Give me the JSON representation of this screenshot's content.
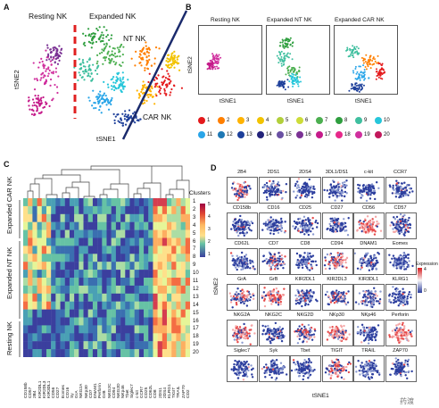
{
  "panels": {
    "a": "A",
    "b": "B",
    "c": "C",
    "d": "D"
  },
  "panelA": {
    "resting_label": "Resting NK",
    "expanded_label": "Expanded NK",
    "ntnk_label": "NT NK",
    "carnk_label": "CAR NK",
    "xlabel": "tSNE1",
    "ylabel": "tSNE2"
  },
  "panelB": {
    "titles": [
      "Resting NK",
      "Expanded NT NK",
      "Expanded CAR NK"
    ],
    "xlabel": "tSNE1",
    "ylabel": "tSNE2",
    "clusters": [
      {
        "n": "1",
        "c": "#e41a1c"
      },
      {
        "n": "2",
        "c": "#ff7f00"
      },
      {
        "n": "3",
        "c": "#ffb300"
      },
      {
        "n": "4",
        "c": "#f2c300"
      },
      {
        "n": "5",
        "c": "#b2cf3b"
      },
      {
        "n": "6",
        "c": "#cddc39"
      },
      {
        "n": "7",
        "c": "#4caf50"
      },
      {
        "n": "8",
        "c": "#2e9e3e"
      },
      {
        "n": "9",
        "c": "#3fbf9f"
      },
      {
        "n": "10",
        "c": "#26c6da"
      },
      {
        "n": "11",
        "c": "#29a5e8"
      },
      {
        "n": "12",
        "c": "#1f78b4"
      },
      {
        "n": "13",
        "c": "#1d3f9a"
      },
      {
        "n": "14",
        "c": "#23237a"
      },
      {
        "n": "15",
        "c": "#6a51a3"
      },
      {
        "n": "16",
        "c": "#7b3294"
      },
      {
        "n": "17",
        "c": "#c51b8a"
      },
      {
        "n": "18",
        "c": "#e7298a"
      },
      {
        "n": "19",
        "c": "#d0309e"
      },
      {
        "n": "20",
        "c": "#c2185b"
      }
    ]
  },
  "panelC": {
    "clusters_title": "Clusters",
    "cluster_numbers": [
      "1",
      "2",
      "3",
      "4",
      "5",
      "6",
      "7",
      "8",
      "9",
      "10",
      "11",
      "12",
      "13",
      "14",
      "15",
      "16",
      "17",
      "18",
      "19",
      "20"
    ],
    "groups": [
      "Expanded CAR NK",
      "Expanded NT NK",
      "Resting NK"
    ],
    "markers": [
      "CD158b",
      "CD57",
      "2B4",
      "KIR2DL1",
      "KIR2DL3",
      "KIR3DL1",
      "CD56",
      "CD27",
      "Eomes",
      "CD16",
      "Sy",
      "GrA",
      "NKG2A",
      "NKp30",
      "CD7",
      "DNAM1",
      "Perforin",
      "GrB",
      "NKG2C",
      "CD94",
      "NKG2D",
      "NKp46",
      "Tbet",
      "Siglec7",
      "c-kit",
      "CCR7",
      "CD25",
      "CD62L",
      "CD8",
      "2DS1",
      "2DS4",
      "KLRG1",
      "TIGIT",
      "TRAIL",
      "ZAP70",
      "CD2"
    ],
    "scale_ticks": [
      "5",
      "4",
      "3",
      "2",
      "1"
    ]
  },
  "panelD": {
    "markers": [
      "2B4",
      "2DS1",
      "2DS4",
      "3DL1/DS1",
      "c-kit",
      "CCR7",
      "CD158b",
      "CD16",
      "CD25",
      "CD27",
      "CD56",
      "CD57",
      "CD62L",
      "CD7",
      "CD8",
      "CD94",
      "DNAM1",
      "Eomes",
      "GrA",
      "GrB",
      "KIR2DL1",
      "KIR2DL3",
      "KIR3DL1",
      "KLRG1",
      "NKG2A",
      "NKG2C",
      "NKG2D",
      "NKp30",
      "NKp46",
      "Perforin",
      "Siglec7",
      "Syk",
      "Tbet",
      "TIGIT",
      "TRAIL",
      "ZAP70"
    ],
    "xlabel": "tSNE1",
    "ylabel": "tSNE2",
    "legend_title": "Expression",
    "legend_hi": "4",
    "legend_lo": "0"
  },
  "watermark": "药渡"
}
